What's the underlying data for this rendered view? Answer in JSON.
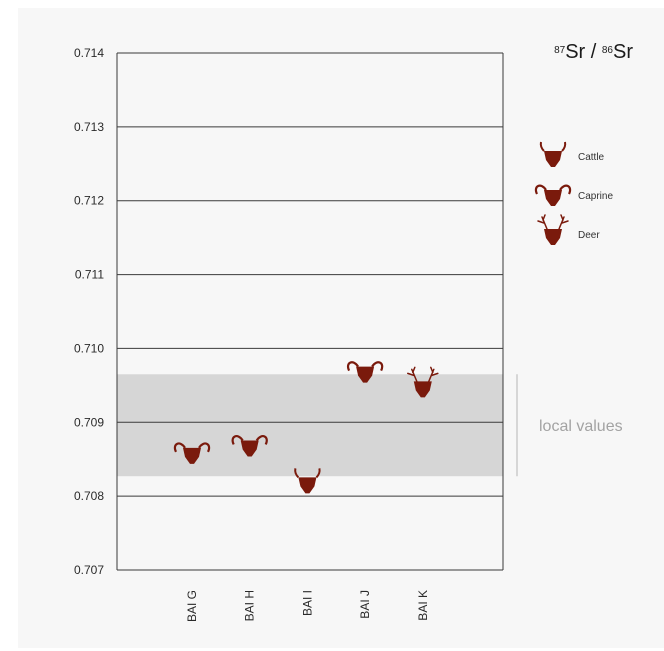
{
  "chart_data": {
    "type": "scatter",
    "title_parts": [
      "87",
      "Sr / ",
      "86",
      "Sr"
    ],
    "ylim": [
      0.707,
      0.714
    ],
    "yticks": [
      "0.707",
      "0.708",
      "0.709",
      "0.710",
      "0.711",
      "0.712",
      "0.713",
      "0.714"
    ],
    "grid": true,
    "categories": [
      "BAI G",
      "BAI H",
      "BAI I",
      "BAI J",
      "BAI K"
    ],
    "points": [
      {
        "category": "BAI G",
        "value": 0.7086,
        "species": "Caprine"
      },
      {
        "category": "BAI H",
        "value": 0.7087,
        "species": "Caprine"
      },
      {
        "category": "BAI I",
        "value": 0.7082,
        "species": "Cattle"
      },
      {
        "category": "BAI J",
        "value": 0.7097,
        "species": "Caprine"
      },
      {
        "category": "BAI K",
        "value": 0.7095,
        "species": "Deer"
      }
    ],
    "local_band": {
      "min": 0.70827,
      "max": 0.70965,
      "label": "local values",
      "color": "#d6d6d6"
    },
    "legend": {
      "placement": "right",
      "entries": [
        {
          "name": "Cattle",
          "icon": "cattle-icon"
        },
        {
          "name": "Caprine",
          "icon": "caprine-icon"
        },
        {
          "name": "Deer",
          "icon": "deer-icon"
        }
      ]
    },
    "colors": {
      "marker": "#7a1a0c",
      "panel": "#f7f7f7",
      "grid": "#3a3a3a",
      "band": "#d6d6d6"
    }
  }
}
